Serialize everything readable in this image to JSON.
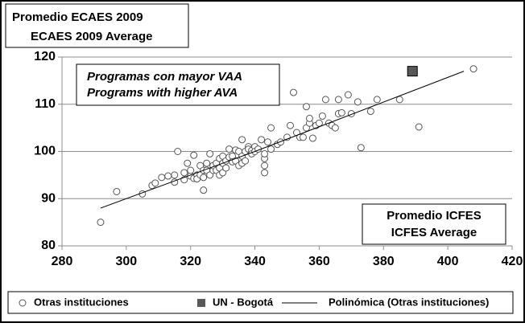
{
  "chart_data": {
    "type": "scatter",
    "annotations": [
      "Promedio ECAES 2009",
      "ECAES 2009 Average",
      "Programas con mayor VAA",
      "Programs with higher AVA",
      "Promedio ICFES",
      "ICFES Average"
    ],
    "xlim": [
      280,
      420
    ],
    "xticks": [
      280,
      300,
      320,
      340,
      360,
      380,
      400,
      420
    ],
    "ylim": [
      80,
      120
    ],
    "yticks": [
      80,
      90,
      100,
      110,
      120
    ],
    "grid": true,
    "series": [
      {
        "name": "Otras instituciones",
        "color": "#ffffff",
        "marker": "circle",
        "x": [
          292,
          297,
          305,
          308,
          309,
          311,
          313,
          315,
          315,
          316,
          318,
          318,
          319,
          320,
          320,
          321,
          321,
          322,
          322,
          323,
          323,
          324,
          324,
          324,
          325,
          325,
          326,
          326,
          327,
          327,
          328,
          328,
          329,
          329,
          329,
          330,
          330,
          330,
          331,
          331,
          332,
          332,
          333,
          333,
          334,
          334,
          335,
          335,
          336,
          336,
          336,
          337,
          337,
          338,
          338,
          339,
          339,
          340,
          340,
          341,
          342,
          343,
          343,
          343,
          343,
          344,
          345,
          345,
          347,
          348,
          350,
          351,
          352,
          353,
          354,
          355,
          356,
          356,
          357,
          357,
          358,
          359,
          360,
          361,
          362,
          363,
          364,
          365,
          366,
          366,
          367,
          369,
          370,
          372,
          373,
          376,
          378,
          385,
          391,
          408
        ],
        "values": [
          85,
          91.5,
          91,
          92.8,
          93.3,
          94.5,
          94.8,
          93.5,
          95,
          100,
          94,
          95.5,
          97.5,
          94.8,
          96,
          99.2,
          94.3,
          95,
          94.2,
          97,
          95,
          96,
          91.8,
          94.5,
          96,
          97.5,
          95,
          99.5,
          96,
          97,
          97.5,
          96,
          95,
          98.5,
          96.5,
          95.5,
          97.5,
          99,
          98,
          96.5,
          100.5,
          98.8,
          99,
          97.8,
          100.3,
          98,
          100,
          97,
          102.5,
          99,
          97.5,
          100,
          98,
          101,
          100.5,
          100.2,
          99.5,
          101,
          100,
          100.5,
          102.5,
          95.5,
          97,
          98.5,
          99.5,
          102,
          105,
          100.5,
          101.5,
          102,
          103,
          105.5,
          112.5,
          104,
          103,
          103,
          109.5,
          105,
          106,
          107,
          102.8,
          105.5,
          106,
          107.5,
          111,
          106,
          105.5,
          105,
          108,
          111,
          108.2,
          112,
          108,
          110.5,
          100.8,
          108.5,
          111,
          111,
          105.2,
          117.5
        ]
      },
      {
        "name": "UN - Bogotá",
        "color": "#595959",
        "marker": "square",
        "x": [
          389
        ],
        "values": [
          117
        ]
      },
      {
        "name": "Polinómica (Otras instituciones)",
        "color": "#000000",
        "marker": "line",
        "x": [
          292,
          340,
          405
        ],
        "values": [
          88,
          100,
          117
        ]
      }
    ]
  }
}
